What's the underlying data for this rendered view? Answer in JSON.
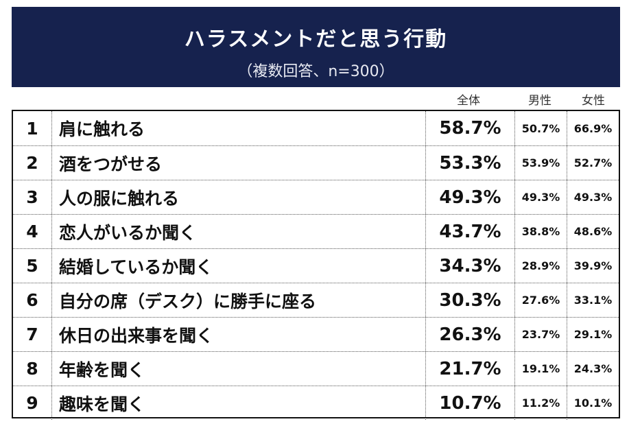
{
  "header": {
    "title": "ハラスメントだと思う行動",
    "subtitle": "（複数回答、n=300）"
  },
  "columns": {
    "total": "全体",
    "male": "男性",
    "female": "女性"
  },
  "rows": [
    {
      "rank": "1",
      "item": "肩に触れる",
      "total": "58.7%",
      "male": "50.7%",
      "female": "66.9%"
    },
    {
      "rank": "2",
      "item": "酒をつがせる",
      "total": "53.3%",
      "male": "53.9%",
      "female": "52.7%"
    },
    {
      "rank": "3",
      "item": "人の服に触れる",
      "total": "49.3%",
      "male": "49.3%",
      "female": "49.3%"
    },
    {
      "rank": "4",
      "item": "恋人がいるか聞く",
      "total": "43.7%",
      "male": "38.8%",
      "female": "48.6%"
    },
    {
      "rank": "5",
      "item": "結婚しているか聞く",
      "total": "34.3%",
      "male": "28.9%",
      "female": "39.9%"
    },
    {
      "rank": "6",
      "item": "自分の席（デスク）に勝手に座る",
      "total": "30.3%",
      "male": "27.6%",
      "female": "33.1%"
    },
    {
      "rank": "7",
      "item": "休日の出来事を聞く",
      "total": "26.3%",
      "male": "23.7%",
      "female": "29.1%"
    },
    {
      "rank": "8",
      "item": "年齢を聞く",
      "total": "21.7%",
      "male": "19.1%",
      "female": "24.3%"
    },
    {
      "rank": "9",
      "item": "趣味を聞く",
      "total": "10.7%",
      "male": "11.2%",
      "female": "10.1%"
    }
  ]
}
